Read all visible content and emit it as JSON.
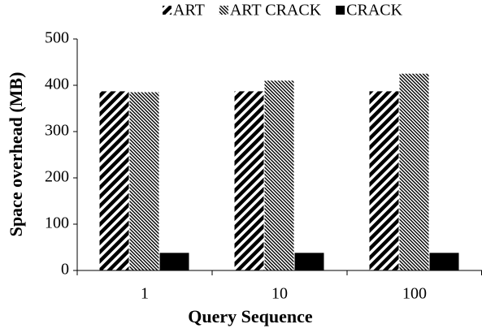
{
  "chart_data": {
    "type": "bar",
    "xlabel": "Query Sequence",
    "ylabel": "Space overhead (MB)",
    "categories": [
      "1",
      "10",
      "100"
    ],
    "series": [
      {
        "name": "ART",
        "color": "#000000",
        "pattern": "diagonal",
        "values": [
          387,
          387,
          387
        ]
      },
      {
        "name": "ART CRACK",
        "color": "#000000",
        "pattern": "dense",
        "values": [
          385,
          410,
          425
        ]
      },
      {
        "name": "CRACK",
        "color": "#000000",
        "pattern": "solid",
        "values": [
          38,
          38,
          38
        ]
      }
    ],
    "ylim": [
      0,
      500
    ],
    "yticks": [
      0,
      100,
      200,
      300,
      400,
      500
    ],
    "grid": false,
    "legend": "top"
  }
}
